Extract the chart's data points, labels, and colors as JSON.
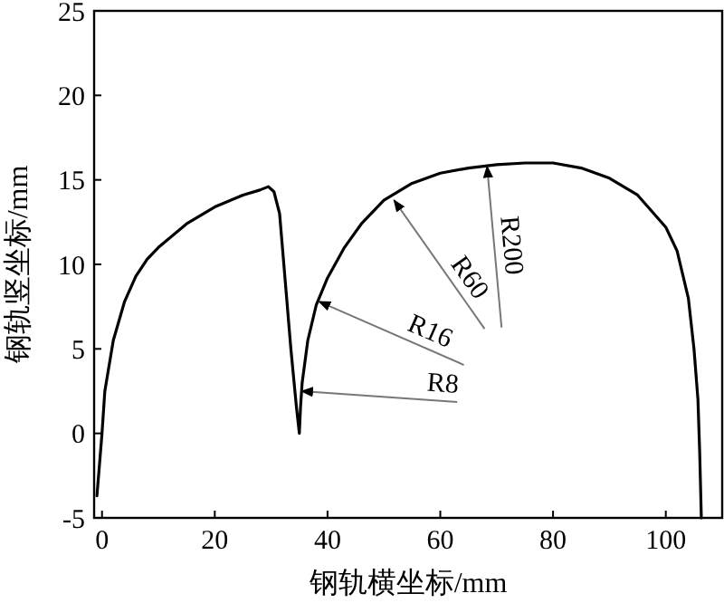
{
  "chart_data": {
    "type": "line",
    "xlabel": "钢轨横坐标/mm",
    "ylabel": "钢轨竖坐标/mm",
    "xlim": [
      -1.4,
      110
    ],
    "ylim": [
      -5,
      25
    ],
    "xticks": [
      0,
      20,
      40,
      60,
      80,
      100
    ],
    "yticks": [
      -5,
      0,
      5,
      10,
      15,
      20,
      25
    ],
    "grid": false,
    "marker": "none",
    "line_style": "solid",
    "series": [
      {
        "color": "#000000",
        "x": [
          -0.9,
          0,
          0.5,
          2,
          4,
          6,
          8,
          10,
          15,
          20,
          25,
          28,
          29.5,
          30.5,
          31.5,
          32.5,
          33.5,
          34.5,
          35,
          35.2,
          35.5,
          36.5,
          38,
          40,
          43,
          46,
          50,
          55,
          60,
          65,
          70,
          75,
          80,
          85,
          90,
          95,
          100,
          102,
          104,
          105,
          105.7,
          106,
          106.3
        ],
        "values": [
          -3.7,
          0,
          2.5,
          5.5,
          7.8,
          9.3,
          10.3,
          11,
          12.4,
          13.4,
          14.1,
          14.4,
          14.6,
          14.3,
          13,
          9,
          5,
          1.5,
          0,
          1.5,
          3,
          5.5,
          7.6,
          9.2,
          11,
          12.4,
          13.8,
          14.8,
          15.4,
          15.7,
          15.9,
          16,
          16,
          15.7,
          15.1,
          14.1,
          12.2,
          10.8,
          8,
          5,
          2,
          -1,
          -5
        ]
      }
    ],
    "annotations": [
      {
        "text": "R8",
        "x": 35.4,
        "y": 2.5
      },
      {
        "text": "R16",
        "x": 38.5,
        "y": 7.8
      },
      {
        "text": "R60",
        "x": 51.8,
        "y": 13.8
      },
      {
        "text": "R200",
        "x": 68.3,
        "y": 15.8
      }
    ]
  }
}
